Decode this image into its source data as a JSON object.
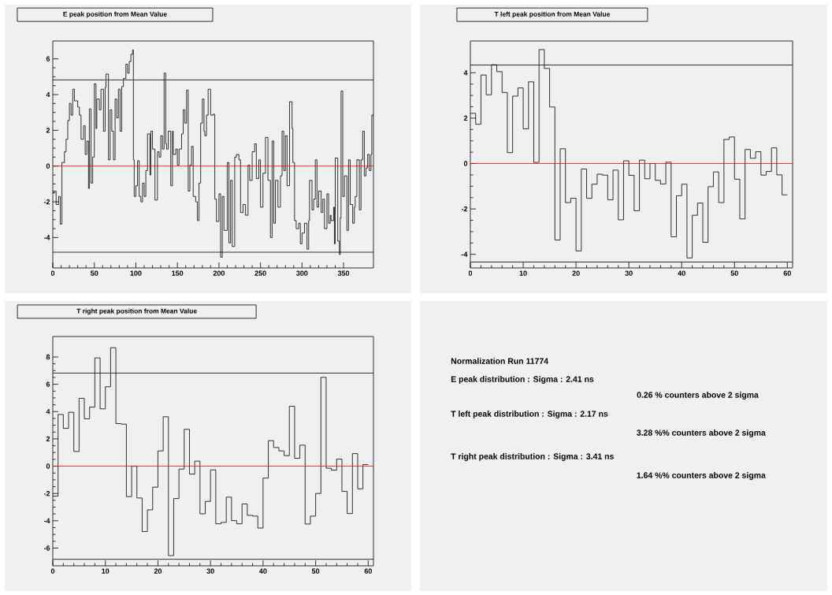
{
  "chart_data": [
    {
      "type": "step",
      "title": "E peak position from Mean Value",
      "series": [
        {
          "color": "#000000",
          "x": [
            0,
            1,
            4,
            7,
            9,
            11,
            14,
            16,
            18,
            20,
            22,
            24,
            26,
            30,
            32,
            34,
            37,
            39,
            41,
            43,
            44,
            46,
            48,
            50,
            52,
            53,
            56,
            58,
            61,
            63,
            64,
            67,
            69,
            71,
            73,
            75,
            77,
            79,
            81,
            83,
            85,
            88,
            90,
            92,
            94,
            96,
            97,
            98,
            100,
            102,
            104,
            106,
            108,
            110,
            112,
            114,
            117,
            118,
            120,
            123,
            126,
            128,
            130,
            132,
            134,
            136,
            137,
            139,
            142,
            144,
            145,
            148,
            150,
            152,
            155,
            157,
            159,
            161,
            163,
            165,
            167,
            169,
            172,
            174,
            176,
            178,
            180,
            182,
            183,
            185,
            187,
            190,
            193,
            195,
            197,
            200,
            202,
            204,
            206,
            210,
            212,
            214,
            216,
            219,
            221,
            224,
            226,
            229,
            232,
            235,
            237,
            240,
            243,
            245,
            248,
            250,
            253,
            256,
            259,
            262,
            264,
            266,
            268,
            271,
            274,
            276,
            278,
            280,
            282,
            285,
            288,
            289,
            291,
            293,
            296,
            298,
            300,
            303,
            306,
            308,
            309,
            312,
            314,
            316,
            318,
            320,
            323,
            325,
            327,
            330,
            332,
            334,
            335,
            338,
            339,
            340,
            343,
            345,
            346,
            347,
            349,
            351,
            354,
            356,
            358,
            361,
            363,
            364,
            366,
            369,
            371,
            373,
            375,
            377,
            379,
            381,
            383,
            384
          ],
          "values": [
            -1.5,
            -1.4,
            -2.15,
            -1.7,
            -3.25,
            0.2,
            0.8,
            1.5,
            2.55,
            3.5,
            2.85,
            4.3,
            3.65,
            3.3,
            2.85,
            1.5,
            2.25,
            0.65,
            1.4,
            -1.25,
            3.2,
            -0.95,
            0.5,
            4.6,
            2.1,
            3.75,
            3.15,
            4.3,
            1.95,
            4.4,
            5.15,
            0.35,
            3.15,
            1.95,
            0.35,
            3.75,
            2.7,
            4.3,
            1.95,
            4.45,
            4.9,
            5.7,
            5.2,
            5.85,
            6.25,
            6.5,
            0.35,
            -1.7,
            -1.1,
            0.3,
            -1.7,
            -2.0,
            -0.95,
            -1.7,
            -0.25,
            1.8,
            -0.5,
            1.95,
            0.95,
            -1.9,
            0.8,
            0.5,
            1.7,
            0.95,
            5.2,
            1.25,
            0.95,
            1.95,
            -1.1,
            1.95,
            0.65,
            0.95,
            0.05,
            0.95,
            1.8,
            3.15,
            2.4,
            4.25,
            -1.4,
            0.05,
            1.1,
            -1.7,
            -2.0,
            -3.05,
            -0.95,
            2.4,
            3.75,
            1.95,
            1.7,
            2.85,
            4.3,
            2.85,
            2.9,
            -1.85,
            -3.1,
            -1.55,
            -5.1,
            -1.7,
            -3.6,
            0.2,
            -4.3,
            -0.8,
            -4.5,
            0.5,
            0.65,
            0.35,
            -2.6,
            -2.15,
            -2.75,
            0.05,
            -0.8,
            0.8,
            1.25,
            -0.7,
            0.35,
            -2.3,
            -0.4,
            1.6,
            -0.8,
            -4.0,
            1.4,
            -3.2,
            -0.8,
            -2.3,
            -0.55,
            1.95,
            -0.25,
            1.7,
            -1.1,
            3.6,
            2.1,
            0.2,
            -3.05,
            -3.5,
            -3.2,
            -4.35,
            -3.75,
            -3.2,
            -4.65,
            -3.05,
            -0.8,
            -2.45,
            -1.85,
            0.35,
            -2.3,
            -1.4,
            -2.6,
            -1.85,
            -3.5,
            -1.55,
            -3.2,
            -2.75,
            -3.05,
            -2.3,
            -4.35,
            0.45,
            -4.2,
            -4.95,
            -2.9,
            4.2,
            -1.7,
            -0.55,
            -3.6,
            0.35,
            -2.15,
            -3.2,
            -2.3,
            -1.7,
            0.35,
            -2.45,
            0.35,
            1.95,
            -0.55,
            -0.1,
            0.65,
            -0.25,
            0.65,
            2.85
          ]
        }
      ],
      "xlim": [
        0,
        386
      ],
      "ylim": [
        -5.7,
        7.0
      ],
      "xticks": [
        0,
        50,
        100,
        150,
        200,
        250,
        300,
        350
      ],
      "yticks": [
        -4,
        -2,
        0,
        2,
        4,
        6
      ],
      "ref_lines": [
        {
          "axis": "y",
          "value": 4.82,
          "color": "#000000"
        },
        {
          "axis": "y",
          "value": -4.82,
          "color": "#000000"
        },
        {
          "axis": "y",
          "value": 0,
          "color": "#ff0000"
        }
      ]
    },
    {
      "type": "histogram",
      "title": "T left  peak position from Mean Value",
      "bins": [
        0,
        1,
        2,
        3,
        4,
        5,
        6,
        7,
        8,
        9,
        10,
        11,
        12,
        13,
        14,
        15,
        16,
        17,
        18,
        19,
        20,
        21,
        22,
        23,
        24,
        25,
        26,
        27,
        28,
        29,
        30,
        31,
        32,
        33,
        34,
        35,
        36,
        37,
        38,
        39,
        40,
        41,
        42,
        43,
        44,
        45,
        46,
        47,
        48,
        49,
        50,
        51,
        52,
        53,
        54,
        55,
        56,
        57,
        58,
        59,
        60
      ],
      "series": [
        {
          "color": "#000000",
          "values": [
            2.21,
            1.73,
            3.9,
            3.03,
            4.35,
            4.05,
            3.13,
            0.48,
            2.97,
            3.33,
            1.53,
            3.6,
            0.05,
            5.02,
            4.19,
            2.49,
            -3.37,
            0.65,
            -1.72,
            -1.53,
            -3.85,
            -0.24,
            -1.53,
            -0.91,
            -0.47,
            -0.51,
            -1.6,
            -0.29,
            -2.48,
            0.12,
            -0.52,
            -2.08,
            0.15,
            -0.67,
            0.0,
            -0.74,
            -0.9,
            0.06,
            -3.23,
            -1.42,
            -0.91,
            -4.16,
            -2.28,
            -1.74,
            -3.47,
            -1.02,
            -0.37,
            -1.72,
            1.06,
            1.17,
            -0.69,
            -2.44,
            0.62,
            0.23,
            0.52,
            -0.51,
            -0.35,
            0.69,
            -0.5,
            -1.38
          ]
        }
      ],
      "xlim": [
        0,
        61
      ],
      "ylim": [
        -4.6,
        5.4
      ],
      "xticks": [
        0,
        10,
        20,
        30,
        40,
        50,
        60
      ],
      "yticks": [
        -4,
        -2,
        0,
        2,
        4
      ],
      "ref_lines": [
        {
          "axis": "y",
          "value": 4.34,
          "color": "#000000"
        },
        {
          "axis": "y",
          "value": -4.34,
          "color": "#000000"
        },
        {
          "axis": "y",
          "value": 0,
          "color": "#ff0000"
        }
      ]
    },
    {
      "type": "histogram",
      "title": "T right peak position from Mean Value",
      "bins": [
        0,
        1,
        2,
        3,
        4,
        5,
        6,
        7,
        8,
        9,
        10,
        11,
        12,
        13,
        14,
        15,
        16,
        17,
        18,
        19,
        20,
        21,
        22,
        23,
        24,
        25,
        26,
        27,
        28,
        29,
        30,
        31,
        32,
        33,
        34,
        35,
        36,
        37,
        38,
        39,
        40,
        41,
        42,
        43,
        44,
        45,
        46,
        47,
        48,
        49,
        50,
        51,
        52,
        53,
        54,
        55,
        56,
        57,
        58,
        59,
        60
      ],
      "series": [
        {
          "color": "#000000",
          "values": [
            -2.2,
            3.79,
            2.77,
            3.95,
            1.08,
            4.97,
            3.47,
            4.33,
            7.93,
            4.2,
            5.82,
            8.68,
            3.12,
            3.08,
            -2.23,
            0.0,
            -2.33,
            -4.79,
            -3.2,
            -1.54,
            1.12,
            3.62,
            -6.55,
            -2.37,
            -0.21,
            2.7,
            -0.58,
            0.37,
            -3.49,
            -2.58,
            -0.27,
            -4.22,
            -4.12,
            -2.27,
            -3.99,
            -4.22,
            -2.77,
            -3.6,
            -3.66,
            -4.53,
            -0.87,
            1.87,
            1.37,
            1.12,
            0.77,
            4.39,
            0.58,
            1.54,
            -4.24,
            -3.66,
            -2.0,
            6.51,
            -0.15,
            -0.29,
            0.52,
            -1.85,
            -3.47,
            0.92,
            -1.66,
            0.12
          ]
        }
      ],
      "xlim": [
        0,
        61
      ],
      "ylim": [
        -7.3,
        9.5
      ],
      "xticks": [
        0,
        10,
        20,
        30,
        40,
        50,
        60
      ],
      "yticks": [
        -6,
        -4,
        -2,
        0,
        2,
        4,
        6,
        8
      ],
      "ref_lines": [
        {
          "axis": "y",
          "value": 6.82,
          "color": "#000000"
        },
        {
          "axis": "y",
          "value": -6.82,
          "color": "#000000"
        },
        {
          "axis": "y",
          "value": 0,
          "color": "#ff0000"
        }
      ]
    },
    {
      "type": "other",
      "annotations": [
        "Normalization Run 11774",
        "E peak distribution : Sigma : 2.41 ns",
        "0.26 % counters above 2 sigma",
        "T left peak distribution : Sigma : 2.17 ns",
        "3.28 %% counters above 2 sigma",
        "T right peak distribution : Sigma : 3.41 ns",
        "1.64 %% counters above 2 sigma"
      ]
    }
  ]
}
